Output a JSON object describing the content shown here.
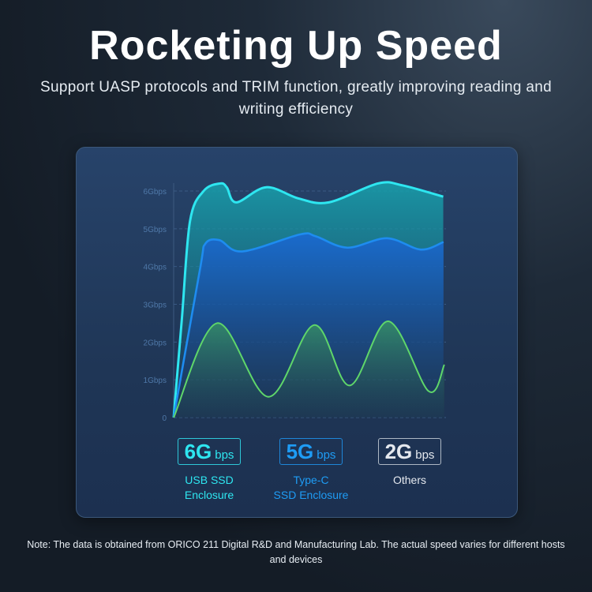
{
  "header": {
    "title": "Rocketing Up Speed",
    "subtitle": "Support UASP protocols and TRIM function, greatly improving reading and writing efficiency"
  },
  "chart_data": {
    "type": "area",
    "title": "",
    "xlabel": "",
    "ylabel": "",
    "y_tick_labels": [
      "0",
      "1Gbps",
      "2Gbps",
      "3Gbps",
      "4Gbps",
      "5Gbps",
      "6Gbps"
    ],
    "ylim": [
      0,
      6
    ],
    "grid": true,
    "series": [
      {
        "name": "USB SSD Enclosure",
        "color": "#2ee6f0",
        "points": [
          [
            0,
            0
          ],
          [
            3,
            2.6
          ],
          [
            6,
            5.2
          ],
          [
            11,
            6.0
          ],
          [
            17,
            6.2
          ],
          [
            19.5,
            6.1
          ],
          [
            23,
            5.7
          ],
          [
            34,
            6.1
          ],
          [
            46,
            5.8
          ],
          [
            57,
            5.7
          ],
          [
            75,
            6.2
          ],
          [
            84,
            6.15
          ],
          [
            99,
            5.85
          ]
        ]
      },
      {
        "name": "Type-C SSD Enclosure",
        "color": "#1e8cf0",
        "points": [
          [
            0,
            0
          ],
          [
            9.6,
            3.9
          ],
          [
            11.6,
            4.6
          ],
          [
            16.8,
            4.7
          ],
          [
            25.2,
            4.4
          ],
          [
            46.4,
            4.85
          ],
          [
            52.2,
            4.8
          ],
          [
            63.8,
            4.5
          ],
          [
            78.3,
            4.75
          ],
          [
            90.7,
            4.45
          ],
          [
            99.1,
            4.65
          ]
        ]
      },
      {
        "name": "Others",
        "color": "#5fd66a",
        "points": [
          [
            0,
            0
          ],
          [
            15.9,
            2.5
          ],
          [
            34.8,
            0.55
          ],
          [
            51.6,
            2.45
          ],
          [
            64.6,
            0.85
          ],
          [
            78.8,
            2.55
          ],
          [
            93.6,
            0.7
          ],
          [
            99.4,
            1.4
          ]
        ]
      }
    ]
  },
  "legend": [
    {
      "value": "6G",
      "unit": "bps",
      "label_line1": "USB SSD",
      "label_line2": "Enclosure",
      "color": "#2ee6f0"
    },
    {
      "value": "5G",
      "unit": "bps",
      "label_line1": "Type-C",
      "label_line2": "SSD Enclosure",
      "color": "#1e9cf5"
    },
    {
      "value": "2G",
      "unit": "bps",
      "label_line1": "Others",
      "label_line2": "",
      "color": "#e4e8ee"
    }
  ],
  "note": "Note: The data is obtained from ORICO 211 Digital R&D and Manufacturing Lab. The actual speed varies for different hosts and devices"
}
